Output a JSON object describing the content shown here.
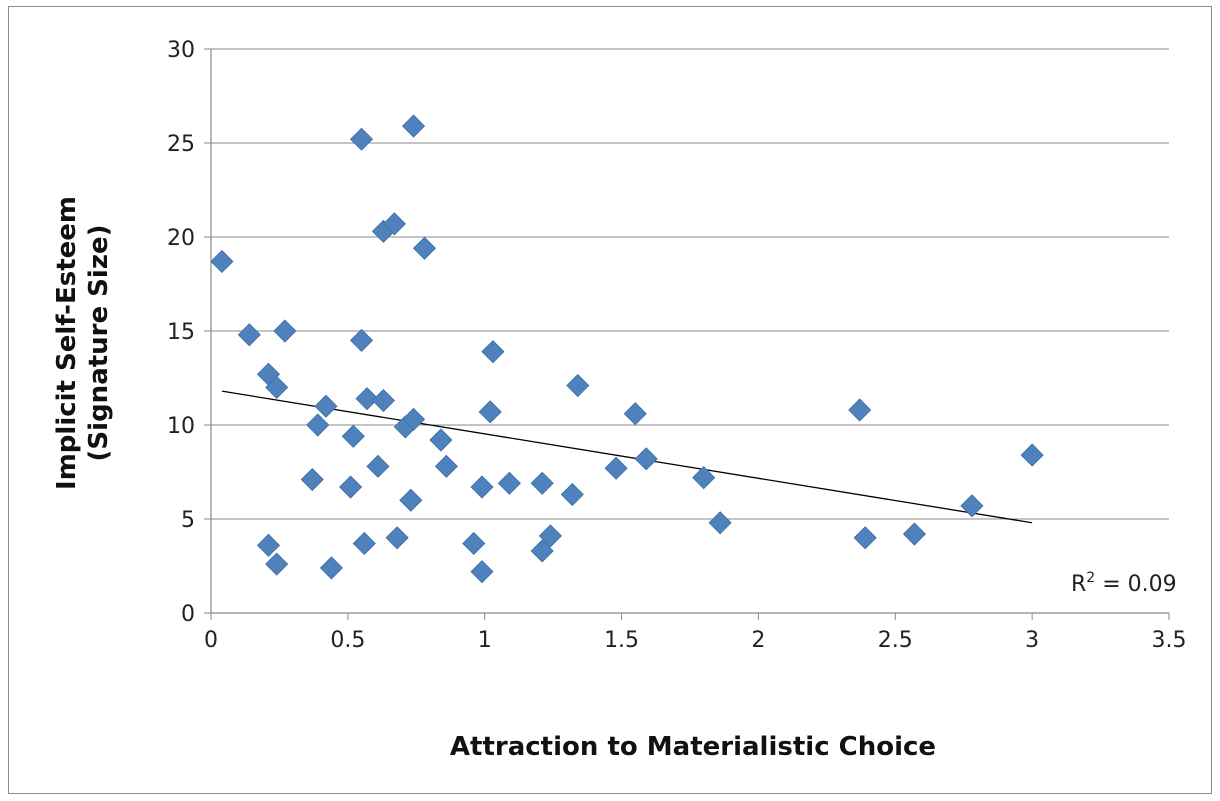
{
  "chart_data": {
    "type": "scatter",
    "title": "",
    "xlabel": "Attraction to Materialistic Choice",
    "ylabel_lines": [
      "Implicit Self-Esteem",
      "(Signature Size)"
    ],
    "xlim": [
      0,
      3.5
    ],
    "ylim": [
      0,
      30
    ],
    "x_ticks": [
      "0",
      "0.5",
      "1",
      "1.5",
      "2",
      "2.5",
      "3",
      "3.5"
    ],
    "y_ticks": [
      "0",
      "5",
      "10",
      "15",
      "20",
      "25",
      "30"
    ],
    "grid": "horizontal",
    "legend": "none",
    "marker_color": "#4f81bd",
    "trendline": {
      "x": [
        0.04,
        3.0
      ],
      "y": [
        11.8,
        4.8
      ]
    },
    "annotation": {
      "r2_prefix": "R",
      "r2_sup": "2",
      "r2_suffix": " = 0.09"
    },
    "points": [
      {
        "x": 0.04,
        "y": 18.7
      },
      {
        "x": 0.14,
        "y": 14.8
      },
      {
        "x": 0.27,
        "y": 15.0
      },
      {
        "x": 0.21,
        "y": 12.7
      },
      {
        "x": 0.24,
        "y": 12.0
      },
      {
        "x": 0.21,
        "y": 3.6
      },
      {
        "x": 0.24,
        "y": 2.6
      },
      {
        "x": 0.37,
        "y": 7.1
      },
      {
        "x": 0.39,
        "y": 10.0
      },
      {
        "x": 0.42,
        "y": 11.0
      },
      {
        "x": 0.44,
        "y": 2.4
      },
      {
        "x": 0.51,
        "y": 6.7
      },
      {
        "x": 0.52,
        "y": 9.4
      },
      {
        "x": 0.55,
        "y": 25.2
      },
      {
        "x": 0.55,
        "y": 14.5
      },
      {
        "x": 0.57,
        "y": 11.4
      },
      {
        "x": 0.56,
        "y": 3.7
      },
      {
        "x": 0.61,
        "y": 7.8
      },
      {
        "x": 0.63,
        "y": 20.3
      },
      {
        "x": 0.67,
        "y": 20.7
      },
      {
        "x": 0.63,
        "y": 11.3
      },
      {
        "x": 0.68,
        "y": 4.0
      },
      {
        "x": 0.71,
        "y": 9.9
      },
      {
        "x": 0.74,
        "y": 10.3
      },
      {
        "x": 0.74,
        "y": 25.9
      },
      {
        "x": 0.73,
        "y": 6.0
      },
      {
        "x": 0.78,
        "y": 19.4
      },
      {
        "x": 0.84,
        "y": 9.2
      },
      {
        "x": 0.86,
        "y": 7.8
      },
      {
        "x": 0.96,
        "y": 3.7
      },
      {
        "x": 0.99,
        "y": 2.2
      },
      {
        "x": 0.99,
        "y": 6.7
      },
      {
        "x": 1.02,
        "y": 10.7
      },
      {
        "x": 1.03,
        "y": 13.9
      },
      {
        "x": 1.09,
        "y": 6.9
      },
      {
        "x": 1.21,
        "y": 6.9
      },
      {
        "x": 1.21,
        "y": 3.3
      },
      {
        "x": 1.24,
        "y": 4.1
      },
      {
        "x": 1.32,
        "y": 6.3
      },
      {
        "x": 1.34,
        "y": 12.1
      },
      {
        "x": 1.48,
        "y": 7.7
      },
      {
        "x": 1.55,
        "y": 10.6
      },
      {
        "x": 1.59,
        "y": 8.2
      },
      {
        "x": 1.8,
        "y": 7.2
      },
      {
        "x": 1.86,
        "y": 4.8
      },
      {
        "x": 2.37,
        "y": 10.8
      },
      {
        "x": 2.39,
        "y": 4.0
      },
      {
        "x": 2.57,
        "y": 4.2
      },
      {
        "x": 2.78,
        "y": 5.7
      },
      {
        "x": 3.0,
        "y": 8.4
      }
    ]
  }
}
